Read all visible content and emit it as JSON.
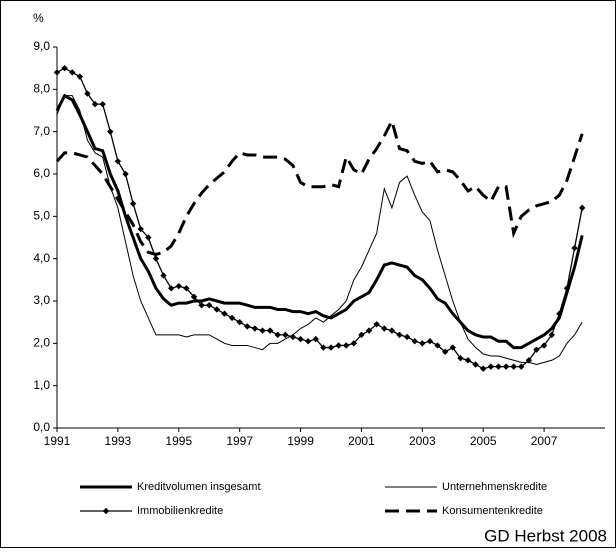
{
  "chart_data": {
    "type": "line",
    "y_unit": "%",
    "source": "GD Herbst 2008",
    "x": [
      1991,
      1991.25,
      1991.5,
      1991.75,
      1992,
      1992.25,
      1992.5,
      1992.75,
      1993,
      1993.25,
      1993.5,
      1993.75,
      1994,
      1994.25,
      1994.5,
      1994.75,
      1995,
      1995.25,
      1995.5,
      1995.75,
      1996,
      1996.25,
      1996.5,
      1996.75,
      1997,
      1997.25,
      1997.5,
      1997.75,
      1998,
      1998.25,
      1998.5,
      1998.75,
      1999,
      1999.25,
      1999.5,
      1999.75,
      2000,
      2000.25,
      2000.5,
      2000.75,
      2001,
      2001.25,
      2001.5,
      2001.75,
      2002,
      2002.25,
      2002.5,
      2002.75,
      2003,
      2003.25,
      2003.5,
      2003.75,
      2004,
      2004.25,
      2004.5,
      2004.75,
      2005,
      2005.25,
      2005.5,
      2005.75,
      2006,
      2006.25,
      2006.5,
      2006.75,
      2007,
      2007.25,
      2007.5,
      2007.75,
      2008,
      2008.25
    ],
    "series": [
      {
        "name": "Kreditvolumen insgesamt",
        "color": "#000000",
        "width": 3,
        "dash": false,
        "marker": "none",
        "values": [
          7.5,
          7.85,
          7.75,
          7.4,
          7.0,
          6.6,
          6.55,
          6.0,
          5.6,
          5.0,
          4.5,
          4.0,
          3.7,
          3.3,
          3.05,
          2.9,
          2.95,
          2.95,
          3.0,
          3.0,
          3.05,
          3.0,
          2.95,
          2.95,
          2.95,
          2.9,
          2.85,
          2.85,
          2.85,
          2.8,
          2.8,
          2.75,
          2.75,
          2.7,
          2.75,
          2.65,
          2.6,
          2.7,
          2.8,
          3.0,
          3.1,
          3.2,
          3.5,
          3.85,
          3.9,
          3.85,
          3.8,
          3.6,
          3.5,
          3.3,
          3.05,
          2.95,
          2.7,
          2.5,
          2.3,
          2.2,
          2.15,
          2.15,
          2.05,
          2.05,
          1.9,
          1.9,
          2.0,
          2.1,
          2.2,
          2.35,
          2.6,
          3.2,
          3.8,
          4.55
        ]
      },
      {
        "name": "Unternehmenskredite",
        "color": "#000000",
        "width": 1,
        "dash": false,
        "marker": "none",
        "values": [
          7.4,
          7.85,
          7.85,
          7.5,
          6.8,
          6.5,
          6.4,
          5.7,
          5.2,
          4.4,
          3.6,
          3.0,
          2.6,
          2.2,
          2.2,
          2.2,
          2.2,
          2.15,
          2.2,
          2.2,
          2.2,
          2.1,
          2.0,
          1.95,
          1.95,
          1.95,
          1.9,
          1.85,
          2.0,
          2.0,
          2.1,
          2.2,
          2.35,
          2.45,
          2.6,
          2.5,
          2.65,
          2.8,
          3.0,
          3.5,
          3.8,
          4.2,
          4.6,
          5.65,
          5.2,
          5.8,
          5.95,
          5.5,
          5.1,
          4.9,
          4.2,
          3.6,
          3.0,
          2.5,
          2.1,
          1.9,
          1.75,
          1.7,
          1.7,
          1.65,
          1.6,
          1.55,
          1.55,
          1.5,
          1.55,
          1.6,
          1.7,
          2.0,
          2.2,
          2.5
        ]
      },
      {
        "name": "Immobilienkredite",
        "color": "#000000",
        "width": 1.3,
        "dash": false,
        "marker": "diamond",
        "values": [
          8.4,
          8.5,
          8.4,
          8.3,
          7.9,
          7.65,
          7.65,
          7.0,
          6.3,
          6.0,
          5.3,
          4.7,
          4.5,
          4.0,
          3.6,
          3.3,
          3.35,
          3.3,
          3.1,
          2.9,
          2.9,
          2.8,
          2.7,
          2.6,
          2.5,
          2.4,
          2.35,
          2.3,
          2.3,
          2.2,
          2.2,
          2.15,
          2.1,
          2.05,
          2.1,
          1.9,
          1.9,
          1.95,
          1.95,
          2.0,
          2.2,
          2.3,
          2.45,
          2.35,
          2.3,
          2.2,
          2.15,
          2.05,
          2.0,
          2.05,
          1.95,
          1.8,
          1.9,
          1.65,
          1.6,
          1.5,
          1.4,
          1.45,
          1.45,
          1.45,
          1.45,
          1.45,
          1.6,
          1.85,
          1.95,
          2.2,
          2.7,
          3.3,
          4.25,
          5.2
        ]
      },
      {
        "name": "Konsumentenkredite",
        "color": "#000000",
        "width": 3,
        "dash": true,
        "marker": "none",
        "values": [
          6.3,
          6.5,
          6.5,
          6.45,
          6.4,
          6.2,
          6.0,
          5.7,
          5.4,
          5.1,
          4.8,
          4.4,
          4.15,
          4.1,
          4.15,
          4.3,
          4.6,
          5.0,
          5.3,
          5.55,
          5.75,
          5.9,
          6.05,
          6.3,
          6.5,
          6.45,
          6.45,
          6.4,
          6.4,
          6.4,
          6.35,
          6.2,
          5.8,
          5.7,
          5.7,
          5.7,
          5.75,
          5.7,
          6.4,
          6.1,
          6.0,
          6.35,
          6.6,
          6.9,
          7.25,
          6.6,
          6.55,
          6.3,
          6.25,
          6.3,
          6.05,
          6.1,
          6.05,
          5.85,
          5.6,
          5.7,
          5.5,
          5.35,
          5.7,
          5.7,
          4.6,
          5.0,
          5.15,
          5.25,
          5.3,
          5.35,
          5.5,
          5.85,
          6.4,
          6.95
        ]
      }
    ],
    "xlim": [
      1991,
      2009
    ],
    "xticks": [
      1991,
      1993,
      1995,
      1997,
      1999,
      2001,
      2003,
      2005,
      2007
    ],
    "ylim": [
      0,
      9
    ],
    "yticks": [
      {
        "value": 0,
        "label": "0,0"
      },
      {
        "value": 1,
        "label": "1,0"
      },
      {
        "value": 2,
        "label": "2,0"
      },
      {
        "value": 3,
        "label": "3,0"
      },
      {
        "value": 4,
        "label": "4,0"
      },
      {
        "value": 5,
        "label": "5,0"
      },
      {
        "value": 6,
        "label": "6,0"
      },
      {
        "value": 7,
        "label": "7,0"
      },
      {
        "value": 8,
        "label": "8,0"
      },
      {
        "value": 9,
        "label": "9,0"
      }
    ],
    "grid": false
  }
}
